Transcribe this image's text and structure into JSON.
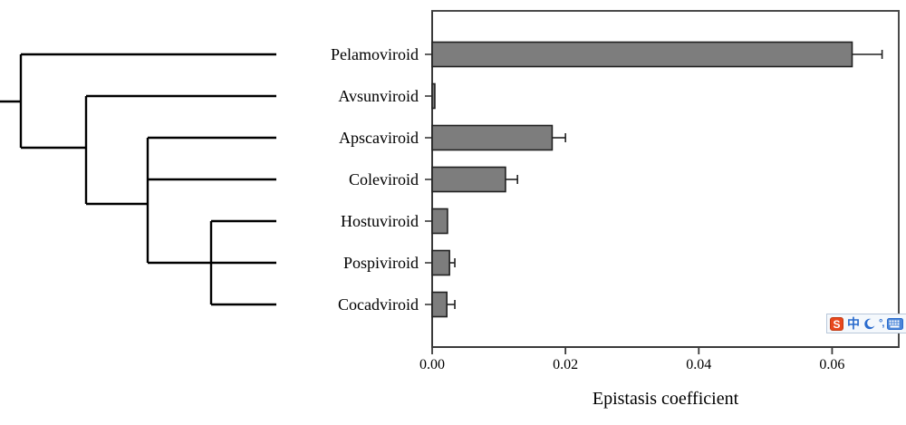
{
  "chart_data": {
    "type": "bar",
    "orientation": "horizontal",
    "title": "",
    "categories": [
      "Pelamoviroid",
      "Avsunviroid",
      "Apscaviroid",
      "Coleviroid",
      "Hostuviroid",
      "Pospiviroid",
      "Cocadviroid"
    ],
    "values": [
      0.063,
      0.0004,
      0.018,
      0.011,
      0.0023,
      0.0026,
      0.0022
    ],
    "errors": [
      0.0045,
      0,
      0.002,
      0.0018,
      0,
      0.0008,
      0.0012
    ],
    "xlabel": "Epistasis coefficient",
    "xlim": [
      0,
      0.07
    ],
    "xticks": [
      0,
      0.02,
      0.04,
      0.06
    ],
    "xtick_labels": [
      "0.00",
      "0.02",
      "0.04",
      "0.06"
    ],
    "grid": false,
    "legend": false,
    "bar_color": "#7d7d7d",
    "bar_border_color": "#212121",
    "error_color": "#212121",
    "frame_color": "#4a4a4a",
    "tick_color": "#3a3a3a"
  },
  "tree": {
    "line_color": "#000000",
    "leaves": [
      "Pelamoviroid",
      "Avsunviroid",
      "Apscaviroid",
      "Coleviroid",
      "Hostuviroid",
      "Pospiviroid",
      "Cocadviroid"
    ],
    "segments": [
      [
        0,
        112,
        23,
        112
      ],
      [
        23,
        60,
        23,
        163
      ],
      [
        23,
        60,
        305,
        60
      ],
      [
        23,
        163,
        95,
        163
      ],
      [
        95,
        106,
        95,
        225
      ],
      [
        95,
        106,
        305,
        106
      ],
      [
        95,
        225,
        163,
        225
      ],
      [
        163,
        152,
        163,
        290
      ],
      [
        163,
        152,
        305,
        152
      ],
      [
        163,
        198,
        305,
        198
      ],
      [
        163,
        290,
        305,
        290
      ],
      [
        233,
        244,
        233,
        336
      ],
      [
        233,
        244,
        305,
        244
      ],
      [
        233,
        336,
        305,
        336
      ]
    ]
  },
  "ime_toolbar": {
    "app": "Sogou input method status bar",
    "logo_text": "S",
    "mode_label": "中",
    "punctuation_label": "°,",
    "icons": [
      "sogou-logo-icon",
      "chinese-mode-icon",
      "moon-icon",
      "punctuation-icon",
      "soft-keyboard-icon",
      "toolbox-icon"
    ],
    "colors": {
      "logo_bg": "#e8471d",
      "icon_blue": "#2a6bcd",
      "keyboard_fill": "#4a86d8",
      "toolbar_bg": "#f4f8fc",
      "toolbar_border": "#b9c8da"
    }
  }
}
